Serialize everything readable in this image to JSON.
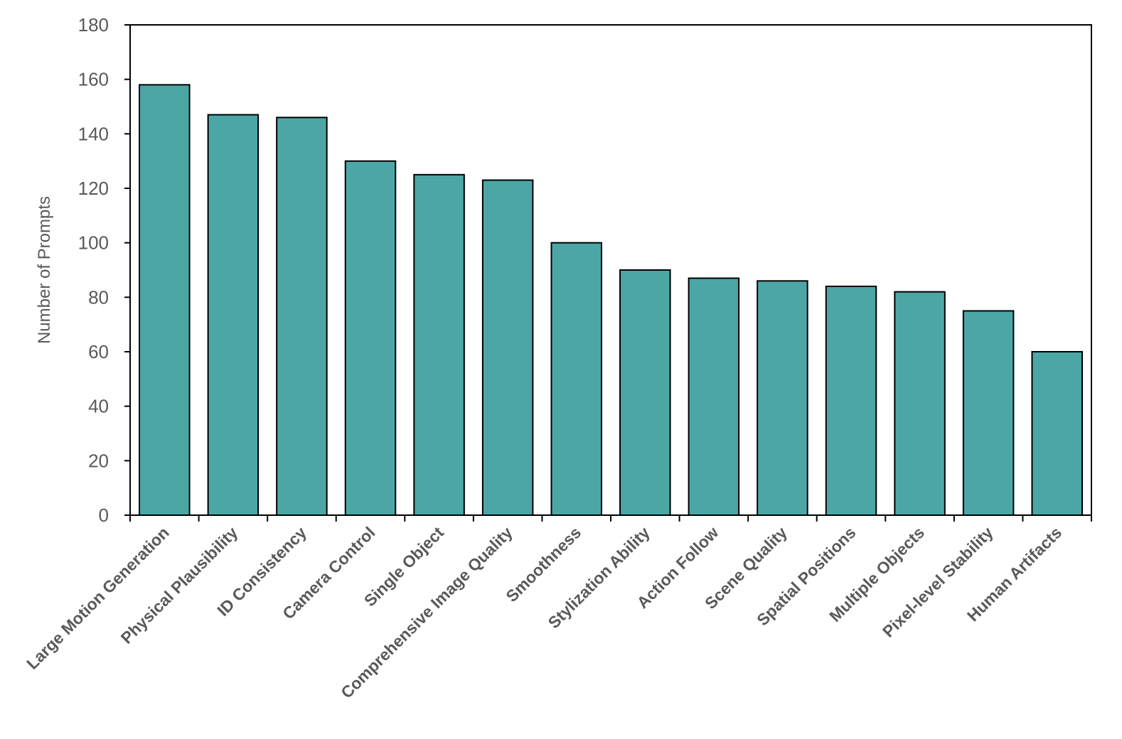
{
  "chart_data": {
    "type": "bar",
    "title": "",
    "xlabel": "",
    "ylabel": "Number of Prompts",
    "ylim": [
      0,
      180
    ],
    "yticks": [
      0,
      20,
      40,
      60,
      80,
      100,
      120,
      140,
      160,
      180
    ],
    "grid": false,
    "legend": "none",
    "categories": [
      "Large Motion Generation",
      "Physical Plausibility",
      "ID Consistency",
      "Camera Control",
      "Single Object",
      "Comprehensive Image Quality",
      "Smoothness",
      "Stylization Ability",
      "Action Follow",
      "Scene Quality",
      "Spatial Positions",
      "Multiple Objects",
      "Pixel-level Stability",
      "Human Artifacts"
    ],
    "values": [
      158,
      147,
      146,
      130,
      125,
      123,
      100,
      90,
      87,
      86,
      84,
      82,
      75,
      60
    ],
    "colors": {
      "bar_fill": "#4da6a6",
      "bar_stroke": "#000000",
      "axis": "#000000",
      "text": "#595959"
    }
  }
}
